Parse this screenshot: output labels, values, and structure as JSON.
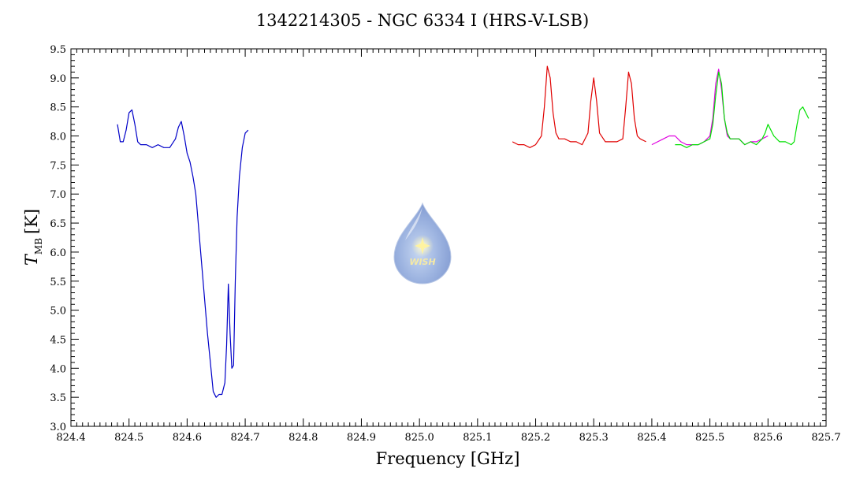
{
  "chart_data": {
    "type": "line",
    "title": "1342214305 - NGC 6334 I (HRS-V-LSB)",
    "xlabel": "Frequency [GHz]",
    "ylabel_main": "T",
    "ylabel_sub": "MB",
    "ylabel_unit": "[K]",
    "xlim": [
      824.4,
      825.7
    ],
    "ylim": [
      3.0,
      9.5
    ],
    "xticks": [
      "824.4",
      "824.5",
      "824.6",
      "824.7",
      "824.8",
      "824.9",
      "825.0",
      "825.1",
      "825.2",
      "825.3",
      "825.4",
      "825.5",
      "825.6",
      "825.7"
    ],
    "yticks": [
      "3.0",
      "3.5",
      "4.0",
      "4.5",
      "5.0",
      "5.5",
      "6.0",
      "6.5",
      "7.0",
      "7.5",
      "8.0",
      "8.5",
      "9.0",
      "9.5"
    ],
    "grid": false,
    "series": [
      {
        "color": "#0000c8",
        "x": [
          824.48,
          824.485,
          824.49,
          824.495,
          824.5,
          824.505,
          824.51,
          824.515,
          824.52,
          824.53,
          824.54,
          824.55,
          824.56,
          824.57,
          824.58,
          824.585,
          824.59,
          824.595,
          824.6,
          824.605,
          824.61,
          824.615,
          824.62,
          824.625,
          824.63,
          824.635,
          824.64,
          824.645,
          824.65,
          824.655,
          824.66,
          824.665,
          824.668,
          824.671,
          824.674,
          824.677,
          824.68,
          824.683,
          824.686,
          824.69,
          824.695,
          824.7,
          824.705
        ],
        "y": [
          8.2,
          7.9,
          7.9,
          8.1,
          8.4,
          8.45,
          8.2,
          7.9,
          7.85,
          7.85,
          7.8,
          7.85,
          7.8,
          7.8,
          7.95,
          8.15,
          8.25,
          8.0,
          7.7,
          7.55,
          7.3,
          7.0,
          6.4,
          5.8,
          5.2,
          4.6,
          4.1,
          3.6,
          3.5,
          3.55,
          3.55,
          3.75,
          4.4,
          5.45,
          4.6,
          4.0,
          4.05,
          5.5,
          6.6,
          7.3,
          7.8,
          8.05,
          8.1
        ]
      },
      {
        "color": "#e00000",
        "x": [
          825.16,
          825.17,
          825.18,
          825.19,
          825.2,
          825.21,
          825.215,
          825.22,
          825.225,
          825.23,
          825.235,
          825.24,
          825.25,
          825.26,
          825.27,
          825.28,
          825.29,
          825.295,
          825.3,
          825.305,
          825.31,
          825.32,
          825.33,
          825.34,
          825.35,
          825.355,
          825.36,
          825.365,
          825.37,
          825.375,
          825.38,
          825.39
        ],
        "y": [
          7.9,
          7.85,
          7.85,
          7.8,
          7.85,
          8.0,
          8.5,
          9.2,
          9.0,
          8.4,
          8.05,
          7.95,
          7.95,
          7.9,
          7.9,
          7.85,
          8.05,
          8.6,
          9.0,
          8.6,
          8.05,
          7.9,
          7.9,
          7.9,
          7.95,
          8.5,
          9.1,
          8.9,
          8.3,
          8.0,
          7.95,
          7.9
        ]
      },
      {
        "color": "#e000e0",
        "x": [
          825.4,
          825.41,
          825.42,
          825.43,
          825.44,
          825.45,
          825.46,
          825.47,
          825.48,
          825.49,
          825.5,
          825.505,
          825.51,
          825.515,
          825.52,
          825.525,
          825.53,
          825.535,
          825.54,
          825.55,
          825.56,
          825.57,
          825.58,
          825.59,
          825.6
        ],
        "y": [
          7.85,
          7.9,
          7.95,
          8.0,
          8.0,
          7.9,
          7.85,
          7.85,
          7.85,
          7.9,
          8.0,
          8.3,
          8.9,
          9.15,
          8.8,
          8.3,
          8.0,
          7.95,
          7.95,
          7.95,
          7.85,
          7.9,
          7.9,
          7.95,
          8.0
        ]
      },
      {
        "color": "#00e000",
        "x": [
          825.44,
          825.45,
          825.46,
          825.47,
          825.48,
          825.49,
          825.5,
          825.505,
          825.51,
          825.515,
          825.52,
          825.525,
          825.53,
          825.535,
          825.54,
          825.55,
          825.56,
          825.57,
          825.58,
          825.59,
          825.595,
          825.6,
          825.61,
          825.62,
          825.63,
          825.64,
          825.645,
          825.65,
          825.655,
          825.66,
          825.665,
          825.67
        ],
        "y": [
          7.85,
          7.85,
          7.8,
          7.85,
          7.85,
          7.9,
          7.95,
          8.2,
          8.7,
          9.1,
          8.9,
          8.3,
          8.05,
          7.95,
          7.95,
          7.95,
          7.85,
          7.9,
          7.85,
          7.95,
          8.05,
          8.2,
          8.0,
          7.9,
          7.9,
          7.85,
          7.9,
          8.2,
          8.45,
          8.5,
          8.4,
          8.3
        ]
      }
    ]
  },
  "watermark": {
    "text": "WISH"
  }
}
